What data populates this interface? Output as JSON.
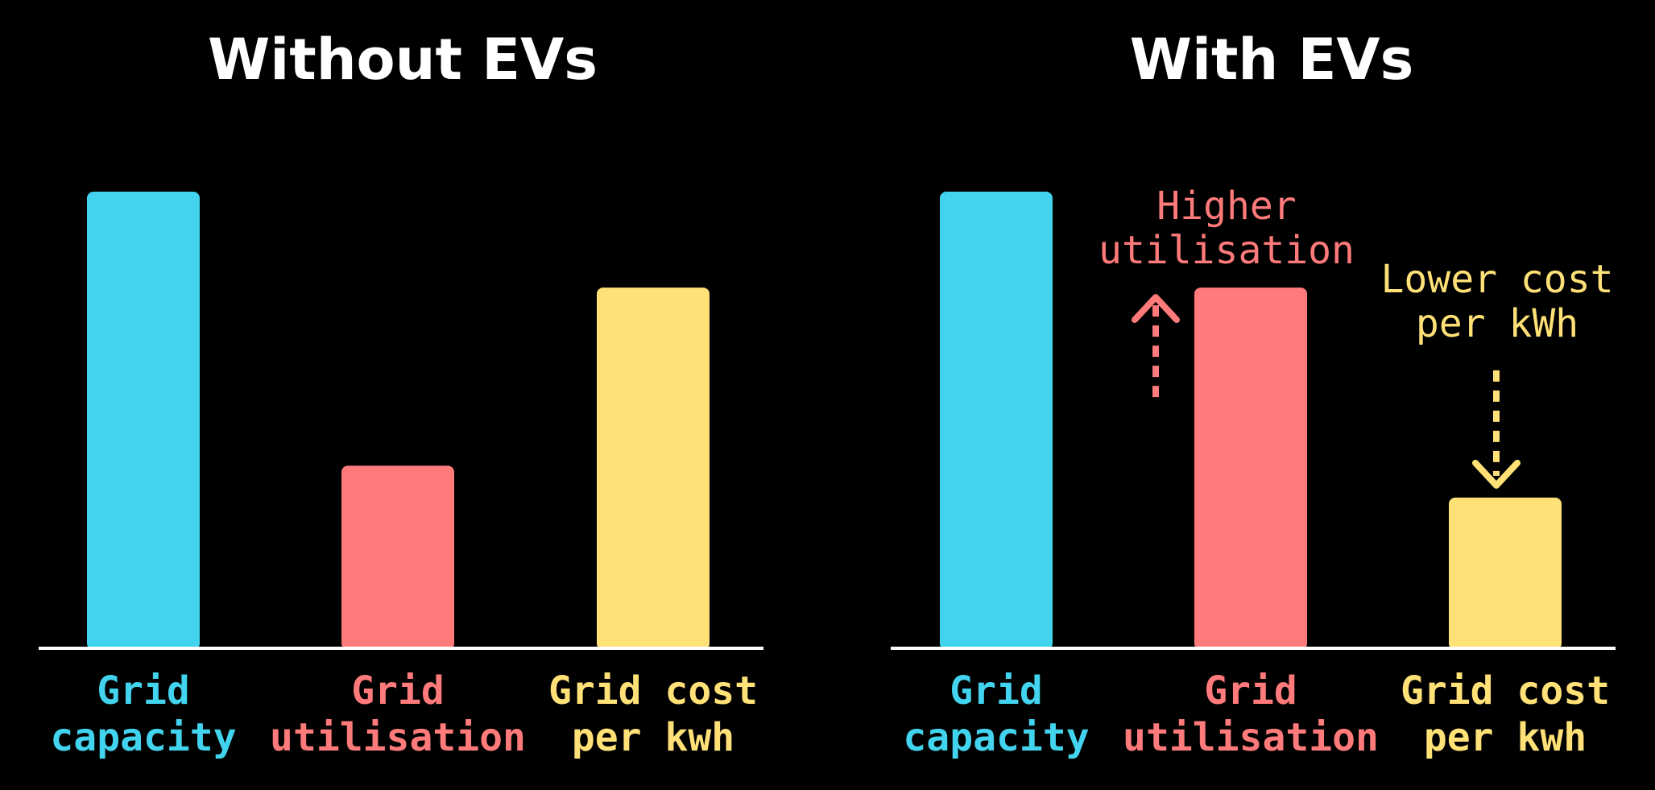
{
  "chart_data": [
    {
      "type": "bar",
      "title": "Without EVs",
      "categories": [
        "Grid capacity",
        "Grid utilisation",
        "Grid cost per kwh"
      ],
      "category_lines": [
        [
          "Grid",
          "capacity"
        ],
        [
          "Grid",
          "utilisation"
        ],
        [
          "Grid cost",
          "per kwh"
        ]
      ],
      "values": [
        1.0,
        0.4,
        0.79
      ],
      "colors": [
        "#42d3ee",
        "#ff7a7a",
        "#ffe177"
      ],
      "ylim": [
        0,
        1
      ],
      "grid": false,
      "axes_visible": false,
      "annotations": []
    },
    {
      "type": "bar",
      "title": "With EVs",
      "categories": [
        "Grid capacity",
        "Grid utilisation",
        "Grid cost per kwh"
      ],
      "category_lines": [
        [
          "Grid",
          "capacity"
        ],
        [
          "Grid",
          "utilisation"
        ],
        [
          "Grid cost",
          "per kwh"
        ]
      ],
      "values": [
        1.0,
        0.79,
        0.33
      ],
      "colors": [
        "#42d3ee",
        "#ff7a7a",
        "#ffe177"
      ],
      "ylim": [
        0,
        1
      ],
      "grid": false,
      "axes_visible": false,
      "annotations": [
        {
          "category": "Grid utilisation",
          "lines": [
            "Higher",
            "utilisation"
          ],
          "arrow": "up",
          "color": "#ff7a7a"
        },
        {
          "category": "Grid cost per kwh",
          "lines": [
            "Lower cost",
            "per kWh"
          ],
          "arrow": "down",
          "color": "#ffe177"
        }
      ]
    }
  ]
}
